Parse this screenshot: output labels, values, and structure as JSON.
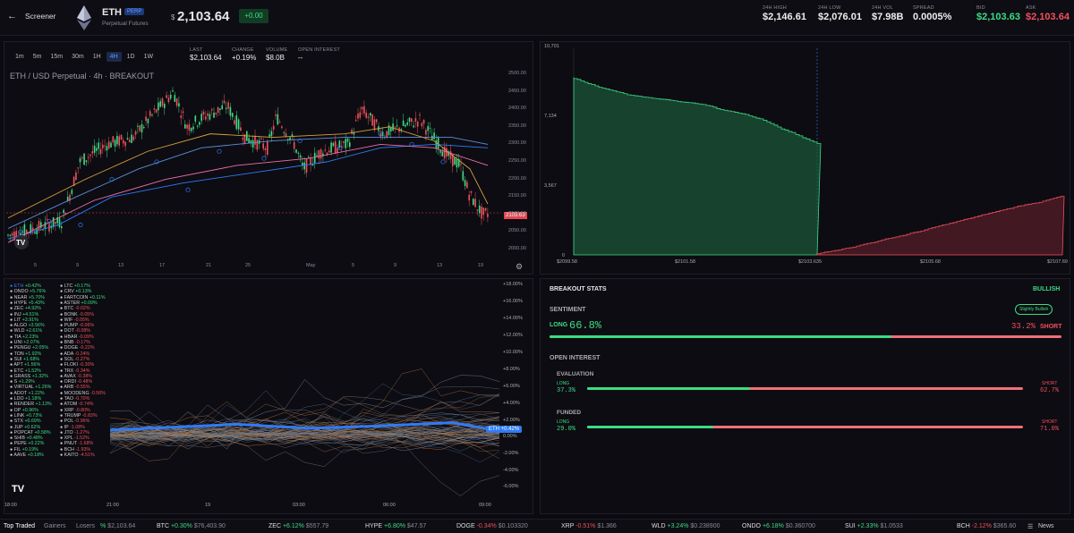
{
  "header": {
    "back_label": "Screener",
    "symbol": "ETH",
    "badge": "PERP",
    "subtitle": "Perpetual Futures",
    "price": "2,103.64",
    "change": "+0.00",
    "stats": [
      {
        "label": "24H HIGH",
        "value": "$2,146.61"
      },
      {
        "label": "24H LOW",
        "value": "$2,076.01"
      },
      {
        "label": "24H VOL",
        "value": "$7.98B"
      },
      {
        "label": "SPREAD",
        "value": "0.0005%"
      },
      {
        "label": "BID",
        "value": "$2,103.63"
      },
      {
        "label": "ASK",
        "value": "$2,103.64"
      }
    ]
  },
  "chart": {
    "timeframes": [
      "1m",
      "5m",
      "15m",
      "30m",
      "1H",
      "4H",
      "1D",
      "1W"
    ],
    "active_tf": "4H",
    "stats": [
      {
        "label": "LAST",
        "value": "$2,103.64"
      },
      {
        "label": "CHANGE",
        "value": "+0.19%"
      },
      {
        "label": "VOLUME",
        "value": "$8.0B"
      },
      {
        "label": "OPEN INTEREST",
        "value": "--"
      }
    ],
    "title": "ETH / USD Perpetual · 4h · BREAKOUT",
    "price_tag": "2103.63",
    "y_ticks": [
      "2500.00",
      "2450.00",
      "2400.00",
      "2350.00",
      "2300.00",
      "2250.00",
      "2200.00",
      "2150.00",
      "2100.00",
      "2050.00",
      "2000.00"
    ],
    "x_ticks": [
      "5",
      "9",
      "13",
      "17",
      "21",
      "25",
      "May",
      "5",
      "9",
      "13",
      "19"
    ]
  },
  "depth": {
    "y_ticks": [
      "10,701",
      "7,134",
      "3,567",
      "0"
    ],
    "x_ticks": [
      "$2099.58",
      "$2101.58",
      "$2103.635",
      "$2105.68",
      "$2107.69"
    ]
  },
  "perf": {
    "y_ticks": [
      "+18.00%",
      "+16.00%",
      "+14.00%",
      "+12.00%",
      "+10.00%",
      "+8.00%",
      "+6.00%",
      "+4.00%",
      "+2.00%",
      "0.00%",
      "-2.00%",
      "-4.00%",
      "-6.00%"
    ],
    "x_ticks": [
      "18:00",
      "21:00",
      "19",
      "03:00",
      "06:00",
      "09:00"
    ],
    "eth_tag": "ETH +0.42%",
    "legend_col1": [
      [
        "ETH",
        "+0.42%"
      ],
      [
        "ONDO",
        "+5.76%"
      ],
      [
        "NEAR",
        "+5.70%"
      ],
      [
        "HYPE",
        "+5.43%"
      ],
      [
        "ZEC",
        "+4.92%"
      ],
      [
        "INJ",
        "+4.51%"
      ],
      [
        "LIT",
        "+3.91%"
      ],
      [
        "ALGO",
        "+3.56%"
      ],
      [
        "WLD",
        "+2.61%"
      ],
      [
        "TIA",
        "+2.23%"
      ],
      [
        "UNI",
        "+2.07%"
      ],
      [
        "PENGU",
        "+2.05%"
      ],
      [
        "TON",
        "+1.92%"
      ],
      [
        "SUI",
        "+1.68%"
      ],
      [
        "APT",
        "+1.56%"
      ],
      [
        "ETC",
        "+1.52%"
      ],
      [
        "GRASS",
        "+1.32%"
      ],
      [
        "S",
        "+1.29%"
      ],
      [
        "VIRTUAL",
        "+1.26%"
      ],
      [
        "ADOT",
        "+1.22%"
      ],
      [
        "LDO",
        "+1.18%"
      ],
      [
        "RENDER",
        "+1.13%"
      ],
      [
        "OP",
        "+0.96%"
      ],
      [
        "LINK",
        "+0.73%"
      ],
      [
        "STX",
        "+0.69%"
      ],
      [
        "JUP",
        "+0.62%"
      ],
      [
        "POPCAT",
        "+0.58%"
      ],
      [
        "SHIB",
        "+0.48%"
      ],
      [
        "PEPE",
        "+0.22%"
      ],
      [
        "FIL",
        "+0.19%"
      ],
      [
        "AAVE",
        "+0.18%"
      ]
    ],
    "legend_col2": [
      [
        "LTC",
        "+0.17%"
      ],
      [
        "CRV",
        "+0.13%"
      ],
      [
        "FARTCOIN",
        "+0.11%"
      ],
      [
        "ASTER",
        "+0.09%"
      ],
      [
        "BTC",
        "-0.02%"
      ],
      [
        "BONK",
        "-0.05%"
      ],
      [
        "WIF",
        "-0.05%"
      ],
      [
        "PUMP",
        "-0.06%"
      ],
      [
        "DOT",
        "-0.08%"
      ],
      [
        "HBAR",
        "-0.09%"
      ],
      [
        "BNB",
        "-0.17%"
      ],
      [
        "DOGE",
        "-0.22%"
      ],
      [
        "ADA",
        "-0.24%"
      ],
      [
        "SOL",
        "-0.27%"
      ],
      [
        "FLOKI",
        "-0.30%"
      ],
      [
        "TRX",
        "-0.34%"
      ],
      [
        "AVAX",
        "-0.38%"
      ],
      [
        "ORDI",
        "-0.48%"
      ],
      [
        "ARB",
        "-0.55%"
      ],
      [
        "MOODENG",
        "-0.56%"
      ],
      [
        "TAO",
        "-0.70%"
      ],
      [
        "ATOM",
        "-0.74%"
      ],
      [
        "XRP",
        "-0.80%"
      ],
      [
        "TRUMP",
        "-0.83%"
      ],
      [
        "POL",
        "-0.96%"
      ],
      [
        "IP",
        "-1.08%"
      ],
      [
        "JTO",
        "-1.27%"
      ],
      [
        "XPL",
        "-1.52%"
      ],
      [
        "PNUT",
        "-1.68%"
      ],
      [
        "BCH",
        "-1.93%"
      ],
      [
        "KAITO",
        "-4.51%"
      ]
    ]
  },
  "breakout": {
    "title": "BREAKOUT STATS",
    "bullish": "BULLISH",
    "sentiment_label": "SENTIMENT",
    "sentiment_badge": "Slightly Bullish",
    "long_label": "LONG",
    "long_pct": "66.8%",
    "short_pct": "33.2%",
    "short_label": "SHORT",
    "long_frac": 0.668,
    "oi_label": "OPEN INTEREST",
    "eval_label": "EVALUATION",
    "eval_long": "37.3%",
    "eval_short": "62.7%",
    "eval_frac": 0.373,
    "funded_label": "FUNDED",
    "funded_long": "29.0%",
    "funded_short": "71.0%",
    "funded_frac": 0.29
  },
  "bottom": {
    "tabs": [
      "Top Traded",
      "Gainers",
      "Losers"
    ],
    "news": "News",
    "tickers": [
      {
        "sym": "",
        "chg": "%",
        "price": "$2,103.64"
      },
      {
        "sym": "BTC",
        "chg": "+0.30%",
        "price": "$76,403.90"
      },
      {
        "sym": "ZEC",
        "chg": "+6.12%",
        "price": "$557.79"
      },
      {
        "sym": "HYPE",
        "chg": "+6.80%",
        "price": "$47.57"
      },
      {
        "sym": "DOGE",
        "chg": "-0.34%",
        "price": "$0.103320"
      },
      {
        "sym": "XRP",
        "chg": "-0.51%",
        "price": "$1.366"
      },
      {
        "sym": "WLD",
        "chg": "+3.24%",
        "price": "$0.238900"
      },
      {
        "sym": "ONDO",
        "chg": "+6.18%",
        "price": "$0.360700"
      },
      {
        "sym": "SUI",
        "chg": "+2.33%",
        "price": "$1.0533"
      },
      {
        "sym": "BCH",
        "chg": "-2.12%",
        "price": "$365.60"
      }
    ]
  },
  "colors": {
    "green": "#3ddc84",
    "red": "#f0505a",
    "blue": "#2f7bf5",
    "bg": "#0b0a10"
  }
}
